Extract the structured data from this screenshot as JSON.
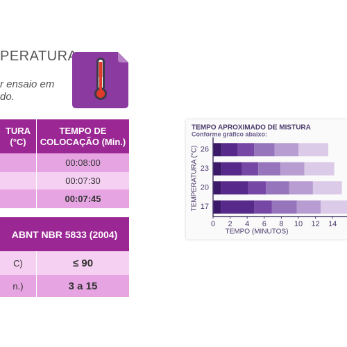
{
  "header": {
    "title": "PERATURA",
    "subtitle_lines": [
      "r ensaio em",
      "do."
    ]
  },
  "table1": {
    "headers": [
      [
        "TURA",
        "(°C)"
      ],
      [
        "TEMPO DE",
        "COLOCAÇÃO (Min.)"
      ]
    ],
    "rows": [
      "00:08:00",
      "00:07:30",
      "00:07:45"
    ]
  },
  "table2": {
    "header": "ABNT NBR 5833 (2004)",
    "rows": [
      [
        "C)",
        "≤ 90"
      ],
      [
        "n.)",
        "3 a 15"
      ]
    ]
  },
  "chart_data": {
    "type": "bar",
    "orientation": "horizontal",
    "stacked": true,
    "title": "TEMPO APROXIMADO DE MISTURA",
    "subtitle": "Conforme gráfico abaixo:",
    "xlabel": "TEMPO (MINUTOS)",
    "ylabel": "TEMPERATURA (°C)",
    "categories": [
      "26",
      "23",
      "20",
      "17"
    ],
    "xlim": [
      0,
      16
    ],
    "xticks": [
      0,
      2,
      4,
      6,
      8,
      10,
      12,
      14
    ],
    "series": [
      {
        "color": "#3b1868",
        "values": [
          1.0,
          1.0,
          0.9,
          0.9
        ]
      },
      {
        "color": "#56298a",
        "values": [
          1.9,
          2.4,
          3.2,
          3.9
        ]
      },
      {
        "color": "#7647a4",
        "values": [
          1.9,
          1.9,
          2.1,
          2.1
        ]
      },
      {
        "color": "#9775bd",
        "values": [
          2.4,
          2.6,
          2.7,
          2.9
        ]
      },
      {
        "color": "#b79dd2",
        "values": [
          2.8,
          2.8,
          2.8,
          2.8
        ]
      },
      {
        "color": "#dccbe8",
        "values": [
          3.5,
          3.5,
          3.4,
          3.4
        ]
      }
    ]
  }
}
